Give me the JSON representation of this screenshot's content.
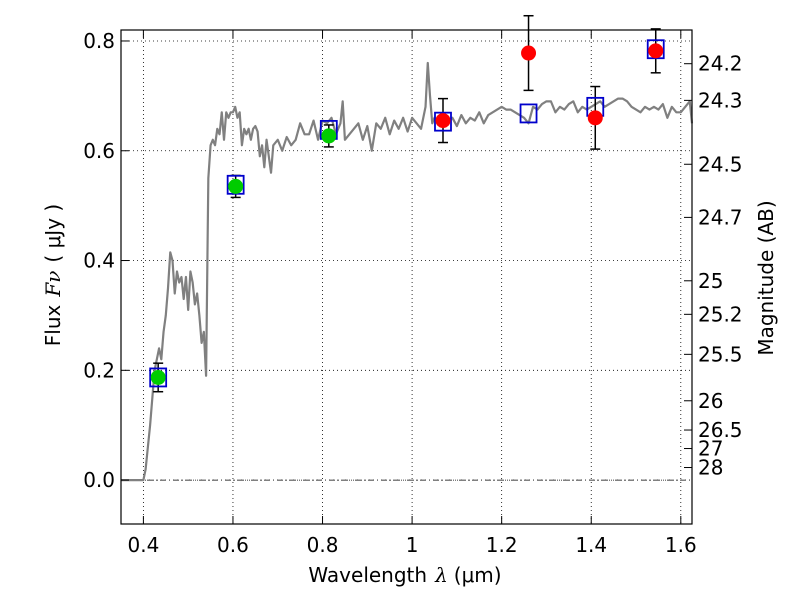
{
  "chart_data": {
    "type": "scatter",
    "xlabel": {
      "prefix": "Wavelength",
      "symbol": "λ",
      "unit": "(μm)"
    },
    "ylabel": {
      "prefix": "Flux",
      "symbol": "Fν",
      "unit": "( μJy )"
    },
    "y2label": "Magnitude (AB)",
    "xlim": [
      0.35,
      1.625
    ],
    "ylim": [
      -0.08,
      0.82
    ],
    "grid": true,
    "x_ticks": [
      {
        "value": 0.4,
        "label": "0.4"
      },
      {
        "value": 0.6,
        "label": "0.6"
      },
      {
        "value": 0.8,
        "label": "0.8"
      },
      {
        "value": 1.0,
        "label": "1"
      },
      {
        "value": 1.2,
        "label": "1.2"
      },
      {
        "value": 1.4,
        "label": "1.4"
      },
      {
        "value": 1.6,
        "label": "1.6"
      }
    ],
    "y_ticks": [
      {
        "value": 0.0,
        "label": "0.0"
      },
      {
        "value": 0.2,
        "label": "0.2"
      },
      {
        "value": 0.4,
        "label": "0.4"
      },
      {
        "value": 0.6,
        "label": "0.6"
      },
      {
        "value": 0.8,
        "label": "0.8"
      }
    ],
    "mag_ticks": [
      {
        "label": "24.2",
        "flux": 0.7586
      },
      {
        "label": "24.3",
        "flux": 0.6918
      },
      {
        "label": "24.5",
        "flux": 0.5754
      },
      {
        "label": "24.7",
        "flux": 0.4786
      },
      {
        "label": "25",
        "flux": 0.3631
      },
      {
        "label": "25.2",
        "flux": 0.302
      },
      {
        "label": "25.5",
        "flux": 0.2291
      },
      {
        "label": "26",
        "flux": 0.1445
      },
      {
        "label": "26.5",
        "flux": 0.0912
      },
      {
        "label": "27",
        "flux": 0.0575
      },
      {
        "label": "28",
        "flux": 0.0229
      }
    ],
    "model_spectrum": {
      "color": "#808080",
      "x": [
        0.35,
        0.4,
        0.405,
        0.415,
        0.425,
        0.435,
        0.44,
        0.445,
        0.45,
        0.455,
        0.46,
        0.465,
        0.47,
        0.475,
        0.48,
        0.485,
        0.49,
        0.495,
        0.5,
        0.505,
        0.51,
        0.515,
        0.52,
        0.525,
        0.53,
        0.535,
        0.54,
        0.545,
        0.55,
        0.555,
        0.56,
        0.565,
        0.57,
        0.575,
        0.58,
        0.585,
        0.59,
        0.595,
        0.6,
        0.605,
        0.61,
        0.615,
        0.62,
        0.625,
        0.63,
        0.635,
        0.64,
        0.645,
        0.65,
        0.655,
        0.66,
        0.665,
        0.67,
        0.675,
        0.68,
        0.685,
        0.69,
        0.7,
        0.71,
        0.72,
        0.73,
        0.74,
        0.75,
        0.76,
        0.77,
        0.78,
        0.79,
        0.8,
        0.81,
        0.82,
        0.83,
        0.84,
        0.845,
        0.85,
        0.86,
        0.87,
        0.88,
        0.89,
        0.9,
        0.91,
        0.92,
        0.93,
        0.94,
        0.95,
        0.96,
        0.97,
        0.98,
        0.99,
        1.0,
        1.01,
        1.02,
        1.03,
        1.035,
        1.04,
        1.045,
        1.05,
        1.06,
        1.07,
        1.08,
        1.09,
        1.1,
        1.11,
        1.12,
        1.13,
        1.14,
        1.15,
        1.16,
        1.17,
        1.18,
        1.19,
        1.2,
        1.21,
        1.22,
        1.23,
        1.24,
        1.25,
        1.26,
        1.27,
        1.28,
        1.29,
        1.3,
        1.31,
        1.32,
        1.33,
        1.34,
        1.35,
        1.36,
        1.37,
        1.38,
        1.39,
        1.4,
        1.41,
        1.42,
        1.43,
        1.44,
        1.45,
        1.46,
        1.47,
        1.48,
        1.49,
        1.5,
        1.51,
        1.52,
        1.53,
        1.54,
        1.55,
        1.56,
        1.57,
        1.58,
        1.59,
        1.6,
        1.61,
        1.62,
        1.625
      ],
      "y": [
        0.0,
        0.0,
        0.02,
        0.1,
        0.2,
        0.24,
        0.22,
        0.27,
        0.3,
        0.35,
        0.415,
        0.4,
        0.34,
        0.38,
        0.36,
        0.37,
        0.33,
        0.37,
        0.31,
        0.38,
        0.36,
        0.32,
        0.34,
        0.3,
        0.25,
        0.27,
        0.19,
        0.55,
        0.61,
        0.62,
        0.61,
        0.64,
        0.63,
        0.67,
        0.62,
        0.67,
        0.66,
        0.67,
        0.67,
        0.68,
        0.66,
        0.67,
        0.61,
        0.64,
        0.63,
        0.64,
        0.62,
        0.64,
        0.645,
        0.635,
        0.59,
        0.61,
        0.57,
        0.62,
        0.59,
        0.56,
        0.61,
        0.62,
        0.6,
        0.625,
        0.61,
        0.62,
        0.65,
        0.63,
        0.63,
        0.655,
        0.62,
        0.655,
        0.65,
        0.66,
        0.63,
        0.65,
        0.69,
        0.62,
        0.63,
        0.64,
        0.65,
        0.62,
        0.645,
        0.6,
        0.65,
        0.64,
        0.66,
        0.63,
        0.655,
        0.64,
        0.66,
        0.635,
        0.66,
        0.65,
        0.64,
        0.68,
        0.76,
        0.7,
        0.65,
        0.66,
        0.65,
        0.66,
        0.655,
        0.66,
        0.645,
        0.665,
        0.65,
        0.66,
        0.655,
        0.67,
        0.65,
        0.665,
        0.67,
        0.675,
        0.68,
        0.675,
        0.675,
        0.67,
        0.665,
        0.66,
        0.65,
        0.68,
        0.675,
        0.685,
        0.69,
        0.69,
        0.67,
        0.68,
        0.675,
        0.685,
        0.69,
        0.67,
        0.68,
        0.675,
        0.68,
        0.685,
        0.69,
        0.68,
        0.685,
        0.69,
        0.695,
        0.695,
        0.69,
        0.68,
        0.675,
        0.67,
        0.68,
        0.675,
        0.68,
        0.675,
        0.685,
        0.66,
        0.68,
        0.67,
        0.67,
        0.68,
        0.69,
        0.65
      ]
    },
    "series": [
      {
        "marker": "open-square",
        "color": "#0000cc",
        "points": [
          {
            "x": 0.433,
            "y": 0.187
          },
          {
            "x": 0.606,
            "y": 0.538
          },
          {
            "x": 0.814,
            "y": 0.638
          },
          {
            "x": 1.069,
            "y": 0.653
          },
          {
            "x": 1.26,
            "y": 0.668
          },
          {
            "x": 1.409,
            "y": 0.68
          },
          {
            "x": 1.544,
            "y": 0.785
          }
        ]
      },
      {
        "marker": "circle",
        "color": "#00cc00",
        "points": [
          {
            "x": 0.433,
            "y": 0.187,
            "err": 0.026
          },
          {
            "x": 0.606,
            "y": 0.535,
            "err": 0.02
          },
          {
            "x": 0.814,
            "y": 0.627,
            "err": 0.02
          }
        ]
      },
      {
        "marker": "circle",
        "color": "#ff0000",
        "points": [
          {
            "x": 1.069,
            "y": 0.655,
            "err": 0.04
          },
          {
            "x": 1.26,
            "y": 0.778,
            "err": 0.068
          },
          {
            "x": 1.409,
            "y": 0.66,
            "err": 0.057
          },
          {
            "x": 1.544,
            "y": 0.782,
            "err": 0.04
          }
        ]
      }
    ]
  }
}
